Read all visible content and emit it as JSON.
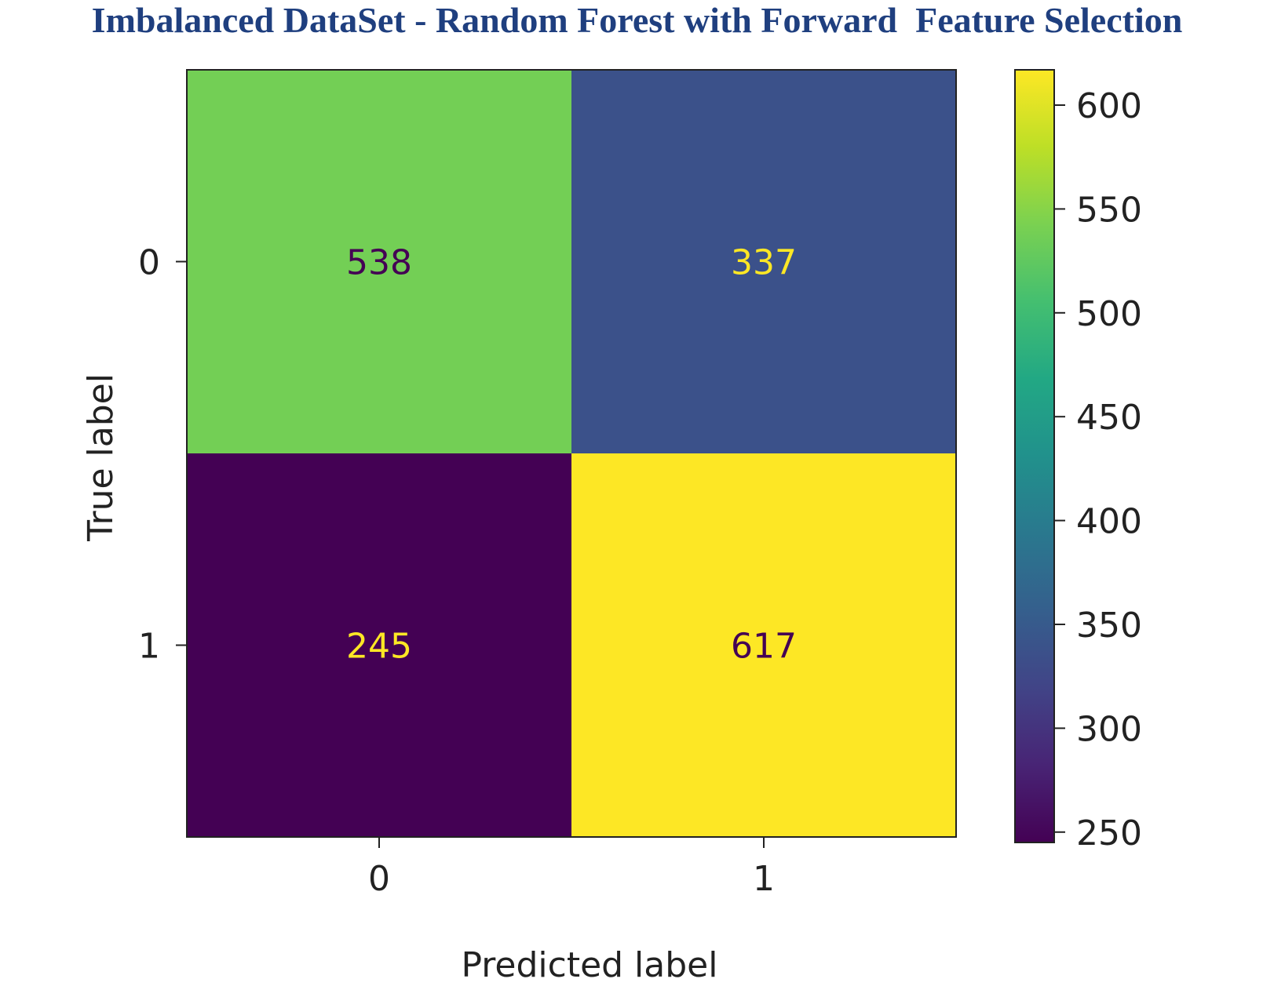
{
  "title": "Imbalanced DataSet - Random Forest with Forward  Feature Selection",
  "chart_data": {
    "type": "heatmap",
    "title": "Imbalanced DataSet - Random Forest with Forward  Feature Selection",
    "xlabel": "Predicted label",
    "ylabel": "True label",
    "x_categories": [
      "0",
      "1"
    ],
    "y_categories": [
      "0",
      "1"
    ],
    "values": [
      [
        538,
        337
      ],
      [
        245,
        617
      ]
    ],
    "colormap": "viridis",
    "colorbar": {
      "range": [
        245,
        617
      ],
      "ticks": [
        250,
        300,
        350,
        400,
        450,
        500,
        550,
        600
      ],
      "tick_labels": [
        "250",
        "300",
        "350",
        "400",
        "450",
        "500",
        "550",
        "600"
      ]
    },
    "text_colors": {
      "dark": "#440154",
      "light": "#fde725"
    },
    "colors": {
      "title": "#1f3f7f",
      "axis": "#222222"
    }
  }
}
